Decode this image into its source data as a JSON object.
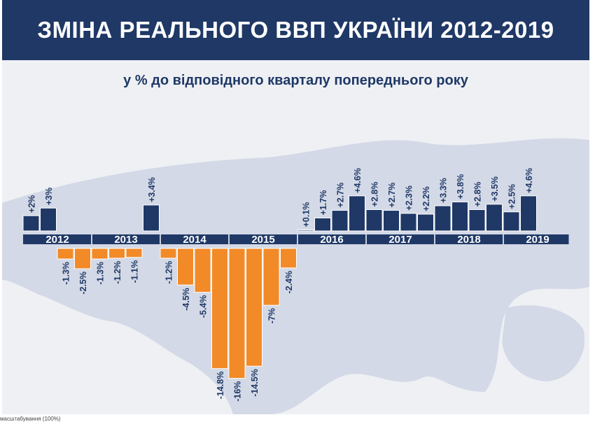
{
  "title": "ЗМІНА РЕАЛЬНОГО ВВП УКРАЇНИ 2012-2019",
  "subtitle": "у % до відповідного кварталу попереднього року",
  "footer_note": "масштабування (100%)",
  "colors": {
    "banner": "#1f3866",
    "positive": "#1f3866",
    "negative": "#f28a27",
    "axis_band": "#1f3866",
    "map": "#d3d9e6",
    "background": "#eef0f4"
  },
  "chart_data": {
    "type": "bar",
    "title": "ЗМІНА РЕАЛЬНОГО ВВП УКРАЇНИ 2012-2019",
    "subtitle": "у % до відповідного кварталу попереднього року",
    "xlabel": "",
    "ylabel": "",
    "categories": [
      "2012 Q1",
      "2012 Q2",
      "2012 Q3",
      "2012 Q4",
      "2013 Q1",
      "2013 Q2",
      "2013 Q3",
      "2013 Q4",
      "2014 Q1",
      "2014 Q2",
      "2014 Q3",
      "2014 Q4",
      "2015 Q1",
      "2015 Q2",
      "2015 Q3",
      "2015 Q4",
      "2016 Q1",
      "2016 Q2",
      "2016 Q3",
      "2016 Q4",
      "2017 Q1",
      "2017 Q2",
      "2017 Q3",
      "2017 Q4",
      "2018 Q1",
      "2018 Q2",
      "2018 Q3",
      "2018 Q4",
      "2019 Q1",
      "2019 Q2",
      "2019 Q3"
    ],
    "values": [
      2,
      3,
      -1.3,
      -2.5,
      -1.3,
      -1.2,
      -1.1,
      3.4,
      -1.2,
      -4.5,
      -5.4,
      -14.8,
      -16,
      -14.5,
      -7,
      -2.4,
      0.1,
      1.7,
      2.7,
      4.6,
      2.8,
      2.7,
      2.3,
      2.2,
      3.3,
      3.8,
      2.8,
      3.5,
      2.5,
      4.6,
      null
    ],
    "value_labels": [
      "+2%",
      "+3%",
      "-1.3%",
      "-2.5%",
      "-1.3%",
      "-1.2%",
      "-1.1%",
      "+3.4%",
      "-1.2%",
      "-4.5%",
      "-5.4%",
      "-14.8%",
      "-16%",
      "-14.5%",
      "-7%",
      "-2.4%",
      "+0.1%",
      "+1.7%",
      "+2.7%",
      "+4.6%",
      "+2.8%",
      "+2.7%",
      "+2.3%",
      "+2.2%",
      "+3.3%",
      "+3.8%",
      "+2.8%",
      "+3.5%",
      "+2.5%",
      "+4.6%",
      ""
    ],
    "years": [
      "2012",
      "2013",
      "2014",
      "2015",
      "2016",
      "2017",
      "2018",
      "2019"
    ],
    "grid": false,
    "legend": "none"
  }
}
